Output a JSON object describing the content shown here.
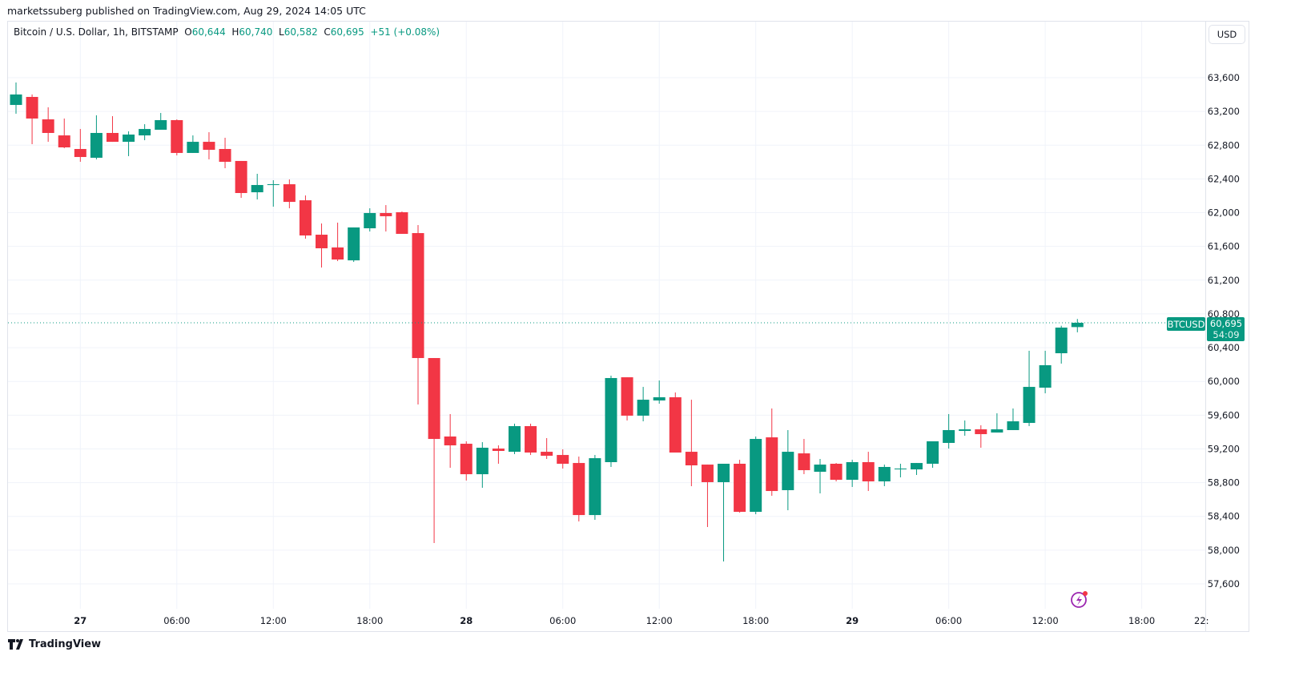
{
  "publisher_line": "marketssuberg published on TradingView.com, Aug 29, 2024 14:05 UTC",
  "legend": {
    "symbol": "Bitcoin / U.S. Dollar, 1h, BITSTAMP",
    "o_label": "O",
    "o": "60,644",
    "h_label": "H",
    "h": "60,740",
    "l_label": "L",
    "l": "60,582",
    "c_label": "C",
    "c": "60,695",
    "change": "+51 (+0.08%)"
  },
  "currency_button": "USD",
  "last_price_tag": {
    "symbol": "BTCUSD",
    "price": "60,695",
    "countdown": "54:09"
  },
  "footer_brand": "TradingView",
  "colors": {
    "up": "#089981",
    "down": "#f23645",
    "grid": "#f0f3fa",
    "alert": "#9c27b0"
  },
  "chart_data": {
    "type": "candlestick",
    "title": "Bitcoin / U.S. Dollar, 1h, BITSTAMP",
    "interval": "1h",
    "first_candle": "Aug 26 20:00",
    "ylim": [
      57450,
      63820
    ],
    "last_price": 60695,
    "y_ticks": [
      63600,
      63200,
      62800,
      62400,
      62000,
      61600,
      61200,
      60800,
      60400,
      60000,
      59600,
      59200,
      58800,
      58400,
      58000,
      57600
    ],
    "y_tick_labels": [
      "63,600",
      "63,200",
      "62,800",
      "62,400",
      "62,000",
      "61,600",
      "61,200",
      "60,800",
      "60,400",
      "60,000",
      "59,600",
      "59,200",
      "58,800",
      "58,400",
      "58,000",
      "57,600"
    ],
    "x_ticks": [
      {
        "hour_index": 4,
        "label": "27",
        "bold": true
      },
      {
        "hour_index": 10,
        "label": "06:00"
      },
      {
        "hour_index": 16,
        "label": "12:00"
      },
      {
        "hour_index": 22,
        "label": "18:00"
      },
      {
        "hour_index": 28,
        "label": "28",
        "bold": true
      },
      {
        "hour_index": 34,
        "label": "06:00"
      },
      {
        "hour_index": 40,
        "label": "12:00"
      },
      {
        "hour_index": 46,
        "label": "18:00"
      },
      {
        "hour_index": 52,
        "label": "29",
        "bold": true
      },
      {
        "hour_index": 58,
        "label": "06:00"
      },
      {
        "hour_index": 64,
        "label": "12:00"
      },
      {
        "hour_index": 70,
        "label": "18:00"
      },
      {
        "hour_index": 74,
        "label": "22:"
      }
    ],
    "candles": [
      [
        63277,
        63543,
        63173,
        63401
      ],
      [
        63372,
        63401,
        62812,
        63116
      ],
      [
        63106,
        63249,
        62840,
        62945
      ],
      [
        62916,
        63116,
        62764,
        62774
      ],
      [
        62755,
        62992,
        62603,
        62660
      ],
      [
        62651,
        63154,
        62632,
        62945
      ],
      [
        62945,
        63144,
        62840,
        62840
      ],
      [
        62840,
        62964,
        62670,
        62926
      ],
      [
        62916,
        63049,
        62859,
        62992
      ],
      [
        62983,
        63182,
        62983,
        63097
      ],
      [
        63097,
        63106,
        62679,
        62708
      ],
      [
        62708,
        62916,
        62708,
        62840
      ],
      [
        62840,
        62954,
        62632,
        62745
      ],
      [
        62755,
        62888,
        62527,
        62603
      ],
      [
        62613,
        62613,
        62176,
        62233
      ],
      [
        62242,
        62461,
        62157,
        62328
      ],
      [
        62330,
        62385,
        62071,
        62337
      ],
      [
        62337,
        62394,
        62052,
        62128
      ],
      [
        62147,
        62204,
        61692,
        61730
      ],
      [
        61739,
        61872,
        61350,
        61578
      ],
      [
        61588,
        61882,
        61426,
        61445
      ],
      [
        61435,
        61825,
        61416,
        61825
      ],
      [
        61815,
        62052,
        61777,
        61996
      ],
      [
        61996,
        62090,
        61777,
        61958
      ],
      [
        62005,
        62014,
        61749,
        61749
      ],
      [
        61758,
        61853,
        59726,
        60277
      ],
      [
        60277,
        60277,
        58084,
        59318
      ],
      [
        59347,
        59613,
        58976,
        59242
      ],
      [
        59261,
        59290,
        58825,
        58900
      ],
      [
        58900,
        59280,
        58739,
        59214
      ],
      [
        59204,
        59242,
        59024,
        59176
      ],
      [
        59166,
        59499,
        59138,
        59470
      ],
      [
        59470,
        59499,
        59128,
        59157
      ],
      [
        59166,
        59328,
        59081,
        59119
      ],
      [
        59128,
        59195,
        58967,
        59024
      ],
      [
        59033,
        59109,
        58340,
        58416
      ],
      [
        58416,
        59128,
        58359,
        59090
      ],
      [
        59043,
        60068,
        58986,
        60040
      ],
      [
        60049,
        60049,
        59537,
        59594
      ],
      [
        59594,
        59935,
        59527,
        59783
      ],
      [
        59774,
        60011,
        59736,
        59812
      ],
      [
        59812,
        59869,
        59157,
        59157
      ],
      [
        59166,
        59783,
        58758,
        59005
      ],
      [
        59014,
        59014,
        58274,
        58806
      ],
      [
        58806,
        59024,
        57866,
        59024
      ],
      [
        59024,
        59071,
        58445,
        58454
      ],
      [
        58454,
        59347,
        58426,
        59318
      ],
      [
        59337,
        59679,
        58644,
        58701
      ],
      [
        58711,
        59423,
        58473,
        59166
      ],
      [
        59147,
        59318,
        58901,
        58948
      ],
      [
        58929,
        59081,
        58673,
        59014
      ],
      [
        59024,
        59033,
        58815,
        58834
      ],
      [
        58834,
        59071,
        58749,
        59043
      ],
      [
        59043,
        59166,
        58701,
        58815
      ],
      [
        58815,
        59014,
        58758,
        58986
      ],
      [
        58962,
        59024,
        58863,
        58967
      ],
      [
        58957,
        59033,
        58891,
        59033
      ],
      [
        59024,
        59290,
        58976,
        59290
      ],
      [
        59271,
        59613,
        59204,
        59423
      ],
      [
        59413,
        59537,
        59356,
        59432
      ],
      [
        59432,
        59480,
        59214,
        59375
      ],
      [
        59394,
        59622,
        59394,
        59432
      ],
      [
        59423,
        59679,
        59423,
        59527
      ],
      [
        59508,
        60363,
        59470,
        59935
      ],
      [
        59926,
        60363,
        59859,
        60192
      ],
      [
        60334,
        60660,
        60211,
        60638
      ],
      [
        60644,
        60740,
        60582,
        60695
      ]
    ]
  }
}
